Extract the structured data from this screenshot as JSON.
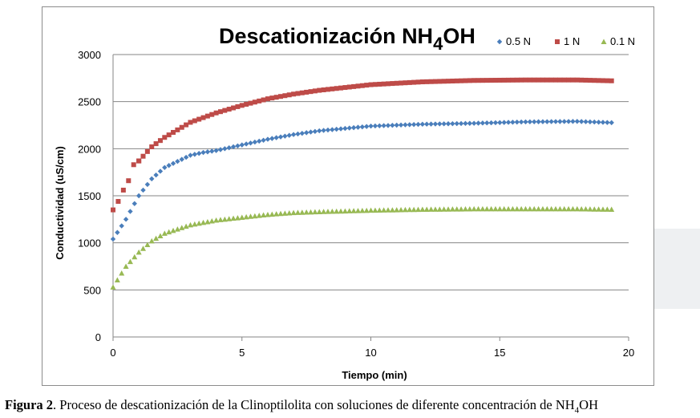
{
  "caption": {
    "label": "Figura 2",
    "text": ". Proceso de descationización de la Clinoptilolita con soluciones de diferente concentración de NH",
    "sub": "4",
    "tail": "OH"
  },
  "colors": {
    "series_0_5N": "#4a7ebb",
    "series_1N": "#be4b48",
    "series_0_1N": "#98b954",
    "grid": "#868686",
    "axis_text": "#000000"
  },
  "chart_data": {
    "type": "scatter",
    "title": "Descationización NH",
    "title_sub": "4",
    "title_tail": "OH",
    "xlabel": "Tiempo (min)",
    "ylabel": "Conductividad (uS/cm)",
    "xlim": [
      0,
      20
    ],
    "ylim": [
      0,
      3000
    ],
    "x_ticks": [
      "0",
      "5",
      "10",
      "15",
      "20"
    ],
    "y_ticks": [
      "0",
      "500",
      "1000",
      "1500",
      "2000",
      "2500",
      "3000"
    ],
    "legend_position": "top-right",
    "grid": "horizontal",
    "series": [
      {
        "name": "0.5 N",
        "marker": "diamond",
        "color": "#4a7ebb",
        "points": [
          [
            0,
            1040
          ],
          [
            0.5,
            1250
          ],
          [
            1,
            1500
          ],
          [
            1.5,
            1680
          ],
          [
            2,
            1800
          ],
          [
            3,
            1930
          ],
          [
            3.5,
            1960
          ],
          [
            4,
            1980
          ],
          [
            5,
            2040
          ],
          [
            6,
            2100
          ],
          [
            7,
            2150
          ],
          [
            8,
            2190
          ],
          [
            10,
            2240
          ],
          [
            12,
            2260
          ],
          [
            14,
            2270
          ],
          [
            16,
            2285
          ],
          [
            18,
            2290
          ],
          [
            19.5,
            2275
          ]
        ]
      },
      {
        "name": "1 N",
        "marker": "square",
        "color": "#be4b48",
        "points": [
          [
            0,
            1350
          ],
          [
            0.2,
            1440
          ],
          [
            0.4,
            1560
          ],
          [
            0.6,
            1660
          ],
          [
            0.8,
            1830
          ],
          [
            1,
            1870
          ],
          [
            1.5,
            2020
          ],
          [
            2,
            2120
          ],
          [
            3,
            2280
          ],
          [
            4,
            2380
          ],
          [
            5,
            2460
          ],
          [
            6,
            2530
          ],
          [
            7,
            2580
          ],
          [
            8,
            2620
          ],
          [
            10,
            2680
          ],
          [
            12,
            2710
          ],
          [
            14,
            2725
          ],
          [
            16,
            2730
          ],
          [
            18,
            2730
          ],
          [
            19.5,
            2720
          ]
        ]
      },
      {
        "name": "0.1 N",
        "marker": "triangle",
        "color": "#98b954",
        "points": [
          [
            0,
            530
          ],
          [
            0.2,
            620
          ],
          [
            0.5,
            750
          ],
          [
            1,
            900
          ],
          [
            1.5,
            1020
          ],
          [
            2,
            1100
          ],
          [
            3,
            1190
          ],
          [
            4,
            1240
          ],
          [
            5,
            1270
          ],
          [
            6,
            1300
          ],
          [
            7,
            1320
          ],
          [
            8,
            1330
          ],
          [
            10,
            1345
          ],
          [
            12,
            1355
          ],
          [
            14,
            1360
          ],
          [
            16,
            1360
          ],
          [
            18,
            1360
          ],
          [
            19.5,
            1355
          ]
        ]
      }
    ]
  }
}
